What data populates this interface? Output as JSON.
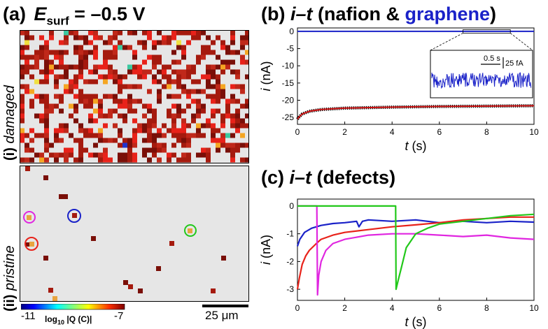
{
  "panel_a": {
    "label": "(a)",
    "e_symbol": "E",
    "e_subscript": "surf",
    "e_value": "= –0.5 V",
    "row_i_num": "(i)",
    "row_i_label": "damaged",
    "row_ii_num": "(ii)",
    "row_ii_label": "pristine",
    "colorbar_min": "-11",
    "colorbar_max": "-7",
    "colorbar_label": "log",
    "colorbar_sub": "10",
    "colorbar_quantity": "|Q (C)|",
    "scalebar_label": "25 μm"
  },
  "colors": {
    "damaged_cell": "#a51a0e",
    "dark_cell": "#7a0f08",
    "bright_red": "#e8221a",
    "map_background": "#e6e6e6",
    "highlight_magenta": "#e026e0",
    "highlight_red": "#e8221a",
    "highlight_blue": "#1a22c8",
    "highlight_green": "#22c81a"
  },
  "chart_data": [
    {
      "type": "line",
      "title_prefix": "(b)",
      "title_it": "i–t",
      "title_mid": " (nafion & ",
      "title_graphene": "graphene",
      "title_end": ")",
      "xlabel": "t",
      "xlabel_unit": "(s)",
      "ylabel": "i",
      "ylabel_unit": "(nA)",
      "xlim": [
        0,
        10
      ],
      "ylim": [
        -27,
        1
      ],
      "x_ticks": [
        "0",
        "2",
        "4",
        "6",
        "8",
        "10"
      ],
      "y_ticks": [
        "0",
        "-5",
        "-10",
        "-15",
        "-20",
        "-25"
      ],
      "series": [
        {
          "name": "graphene",
          "color": "#1a22c8",
          "x": [
            0,
            10
          ],
          "y": [
            0,
            0
          ]
        },
        {
          "name": "nafion",
          "color": "#cc1111",
          "x": [
            0,
            0.05,
            0.2,
            0.5,
            1,
            2,
            4,
            6,
            8,
            10
          ],
          "y": [
            -25.5,
            -25,
            -24,
            -23.2,
            -22.7,
            -22.3,
            -22.0,
            -21.8,
            -21.7,
            -21.6
          ]
        }
      ],
      "inset": {
        "time_scale": "0.5 s",
        "current_scale": "25 fA"
      }
    },
    {
      "type": "line",
      "title_prefix": "(c)",
      "title_it": "i–t",
      "title_end": " (defects)",
      "xlabel": "t",
      "xlabel_unit": "(s)",
      "ylabel": "i",
      "ylabel_unit": "(nA)",
      "xlim": [
        0,
        10
      ],
      "ylim": [
        -3.4,
        0.25
      ],
      "x_ticks": [
        "0",
        "2",
        "4",
        "6",
        "8",
        "10"
      ],
      "y_ticks": [
        "0",
        "-1",
        "-2",
        "-3"
      ],
      "series": [
        {
          "name": "blue",
          "color": "#1a22c8",
          "x": [
            0,
            0.1,
            0.3,
            0.6,
            1.0,
            1.5,
            2.0,
            2.5,
            2.6,
            2.75,
            3,
            4,
            5,
            6,
            7,
            8,
            9,
            10
          ],
          "y": [
            -1.45,
            -1.2,
            -0.95,
            -0.8,
            -0.7,
            -0.63,
            -0.6,
            -0.55,
            -0.75,
            -0.55,
            -0.5,
            -0.55,
            -0.5,
            -0.6,
            -0.55,
            -0.6,
            -0.55,
            -0.58
          ]
        },
        {
          "name": "red",
          "color": "#e8221a",
          "x": [
            0,
            0.08,
            0.2,
            0.35,
            0.5,
            0.8,
            1,
            1.5,
            2,
            3,
            4,
            5,
            6,
            7,
            8,
            9,
            10
          ],
          "y": [
            -3.0,
            -2.6,
            -2.1,
            -1.8,
            -1.6,
            -1.35,
            -1.2,
            -1.05,
            -0.95,
            -0.85,
            -0.75,
            -0.68,
            -0.6,
            -0.5,
            -0.45,
            -0.4,
            -0.4
          ]
        },
        {
          "name": "magenta",
          "color": "#e026e0",
          "x": [
            0,
            0.82,
            0.85,
            0.9,
            1.0,
            1.2,
            1.5,
            2,
            3,
            4,
            5,
            6,
            7,
            8,
            9,
            10
          ],
          "y": [
            0,
            0,
            -3.2,
            -2.5,
            -2.0,
            -1.6,
            -1.35,
            -1.2,
            -1.05,
            -1.0,
            -1.0,
            -1.05,
            -1.1,
            -1.05,
            -1.15,
            -1.2
          ]
        },
        {
          "name": "green",
          "color": "#22c81a",
          "x": [
            0,
            4.15,
            4.17,
            4.25,
            4.4,
            4.6,
            5,
            5.5,
            6,
            7,
            8,
            9,
            10
          ],
          "y": [
            0,
            0,
            -3.0,
            -2.7,
            -2.2,
            -1.5,
            -1.0,
            -0.8,
            -0.65,
            -0.55,
            -0.45,
            -0.35,
            -0.3
          ]
        }
      ]
    }
  ]
}
